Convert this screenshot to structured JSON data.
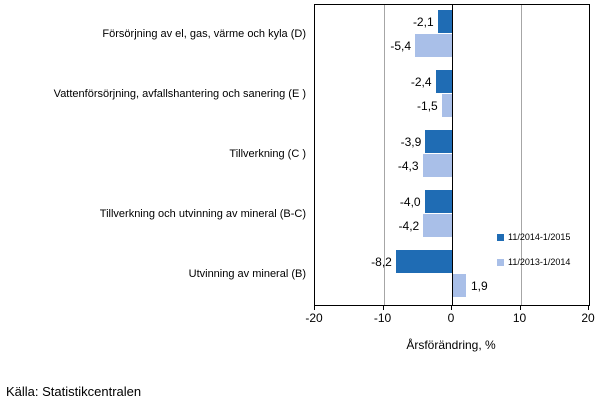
{
  "chart_data": {
    "type": "bar",
    "orientation": "horizontal",
    "title": "",
    "xlabel": "Årsförändring, %",
    "ylabel": "",
    "xlim": [
      -20,
      20
    ],
    "xticks": [
      -20,
      -10,
      0,
      10,
      20
    ],
    "xtick_labels": [
      "-20",
      "-10",
      "0",
      "10",
      "20"
    ],
    "grid": true,
    "legend_position": "inside-right",
    "categories": [
      "Försörjning av el, gas, värme och kyla (D)",
      "Vattenförsörjning, avfallshantering och sanering (E )",
      "Tillverkning (C )",
      "Tillverkning och utvinning av mineral (B-C)",
      "Utvinning av mineral (B)"
    ],
    "series": [
      {
        "name": "11/2014-1/2015",
        "color": "#1F6CB4",
        "values": [
          -2.1,
          -2.4,
          -3.9,
          -4.0,
          -8.2
        ],
        "value_labels": [
          "-2,1",
          "-2,4",
          "-3,9",
          "-4,0",
          "-8,2"
        ]
      },
      {
        "name": "11/2013-1/2014",
        "color": "#A9BFE8",
        "values": [
          -5.4,
          -1.5,
          -4.3,
          -4.2,
          1.9
        ],
        "value_labels": [
          "-5,4",
          "-1,5",
          "-4,3",
          "-4,2",
          "1,9"
        ]
      }
    ]
  },
  "source": "Källa: Statistikcentralen",
  "colors": {
    "series_dark": "#1F6CB4",
    "series_light": "#A9BFE8",
    "gridline": "#A6A6A6",
    "axis": "#000000"
  }
}
